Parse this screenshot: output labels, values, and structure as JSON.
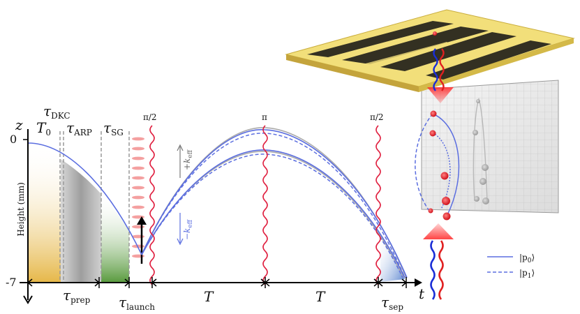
{
  "phases": {
    "t0": "T",
    "t0_sub": "0",
    "dkc": "τ",
    "dkc_sub": "DKC",
    "arp": "τ",
    "arp_sub": "ARP",
    "sg": "τ",
    "sg_sub": "SG",
    "prep": "τ",
    "prep_sub": "prep",
    "launch": "τ",
    "launch_sub": "launch",
    "sep": "τ",
    "sep_sub": "sep",
    "t1": "T",
    "t2": "T"
  },
  "pulses": {
    "first": "π/2",
    "mirror": "π",
    "last": "π/2"
  },
  "axes": {
    "z": "z",
    "t": "t",
    "ylabel": "Height (mm)",
    "ytick_top": "0",
    "ytick_bottom": "-7"
  },
  "kicks": {
    "up_sign": "+",
    "down_sign": "−",
    "k": "k",
    "k_sub": "eff"
  },
  "legend": {
    "p0": "|p",
    "p0_sub": "0",
    "p0_end": "⟩",
    "p1": "|p",
    "p1_sub": "1",
    "p1_end": "⟩"
  },
  "colors": {
    "trajectory": "#5b6ee0",
    "laser": "#e02040",
    "gold": "#e6b84a",
    "gray": "#a8a8a8",
    "green": "#6aa84f",
    "blue_fill": "#6d95d8",
    "chip_top": "#f2df7a",
    "chip_dark": "#333022"
  }
}
